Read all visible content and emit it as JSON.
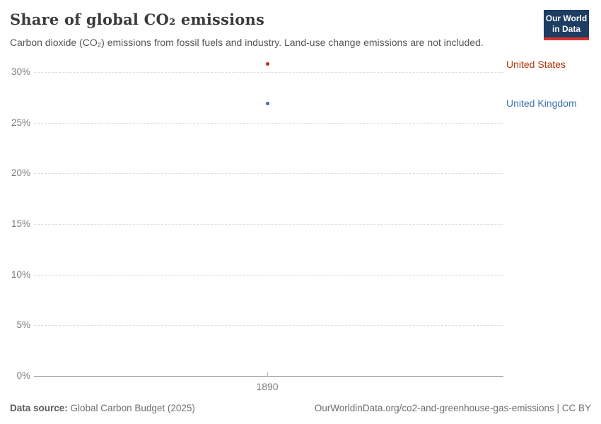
{
  "header": {
    "title": "Share of global CO₂ emissions",
    "subtitle": "Carbon dioxide (CO₂) emissions from fossil fuels and industry. Land-use change emissions are not included.",
    "logo": {
      "line1": "Our World",
      "line2": "in Data",
      "bg_color": "#1d3d63",
      "accent_color": "#d7352c"
    }
  },
  "chart_data": {
    "type": "scatter",
    "title": "Share of global CO₂ emissions",
    "subtitle": "Carbon dioxide (CO₂) emissions from fossil fuels and industry. Land-use change emissions are not included.",
    "x": [
      1890
    ],
    "xtick_labels": [
      "1890"
    ],
    "series": [
      {
        "name": "United States",
        "color": "#b13507",
        "values": [
          30.8
        ]
      },
      {
        "name": "United Kingdom",
        "color": "#3c6fb2",
        "values": [
          26.9
        ]
      }
    ],
    "ylim": [
      0,
      31
    ],
    "yticks": [
      0,
      5,
      10,
      15,
      20,
      25,
      30
    ],
    "ytick_suffix": "%",
    "grid": "dashed-horizontal",
    "legend_position": "right-of-plot-inline"
  },
  "footer": {
    "source_label": "Data source:",
    "source_value": " Global Carbon Budget (2025)",
    "url": "OurWorldinData.org/co2-and-greenhouse-gas-emissions",
    "separator": " | ",
    "license": "CC BY"
  }
}
